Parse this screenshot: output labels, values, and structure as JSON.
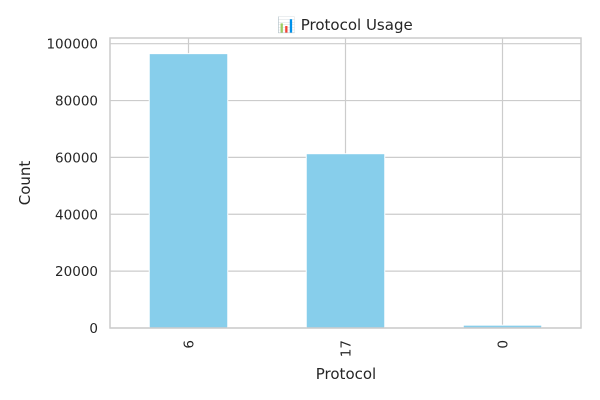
{
  "chart_data": {
    "type": "bar",
    "title": "📊 Protocol Usage",
    "title_icon": "bar-chart-icon",
    "xlabel": "Protocol",
    "ylabel": "Count",
    "categories": [
      "6",
      "17",
      "0"
    ],
    "values": [
      96500,
      61300,
      1000
    ],
    "ylim": [
      0,
      102000
    ],
    "yticks": [
      0,
      20000,
      40000,
      60000,
      80000,
      100000
    ],
    "ytick_labels": [
      "0",
      "20000",
      "40000",
      "60000",
      "80000",
      "100000"
    ],
    "bar_color": "#87CEEB",
    "grid": true,
    "legend": "none"
  }
}
